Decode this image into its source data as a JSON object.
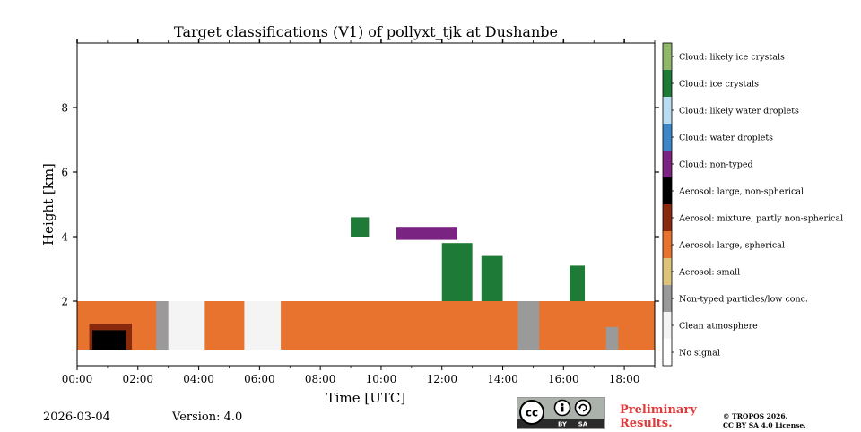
{
  "chart_data": {
    "type": "heatmap",
    "title": "Target classifications (V1) of pollyxt_tjk at Dushanbe",
    "xlabel": "Time [UTC]",
    "ylabel": "Height [km]",
    "xlim_hours": [
      0,
      19
    ],
    "ylim_km": [
      0,
      10
    ],
    "x_ticks": [
      "00:00",
      "02:00",
      "04:00",
      "06:00",
      "08:00",
      "10:00",
      "12:00",
      "14:00",
      "16:00",
      "18:00"
    ],
    "x_tick_hours": [
      0,
      2,
      4,
      6,
      8,
      10,
      12,
      14,
      16,
      18
    ],
    "y_ticks": [
      "2",
      "4",
      "6",
      "8"
    ],
    "y_tick_values": [
      2,
      4,
      6,
      8
    ],
    "legend": [
      {
        "label": "Cloud: likely ice crystals",
        "color": "#8fb869"
      },
      {
        "label": "Cloud: ice crystals",
        "color": "#1e7a37"
      },
      {
        "label": "Cloud: likely water droplets",
        "color": "#b8dcf2"
      },
      {
        "label": "Cloud: water droplets",
        "color": "#3b87c8"
      },
      {
        "label": "Cloud: non-typed",
        "color": "#7b2383"
      },
      {
        "label": "Aerosol: large, non-spherical",
        "color": "#000000"
      },
      {
        "label": "Aerosol: mixture, partly non-spherical",
        "color": "#8a2a0c"
      },
      {
        "label": "Aerosol: large, spherical",
        "color": "#e8732e"
      },
      {
        "label": "Aerosol: small",
        "color": "#dcc57a"
      },
      {
        "label": "Non-typed particles/low conc.",
        "color": "#9a9a9a"
      },
      {
        "label": "Clean atmosphere",
        "color": "#f4f4f4"
      },
      {
        "label": "No signal",
        "color": "#ffffff"
      }
    ],
    "layers": [
      {
        "class": "Aerosol: large, spherical",
        "from_hours": 0.0,
        "to_hours": 19.0,
        "base_km": 0.5,
        "top_km": 2.0
      },
      {
        "class": "Non-typed particles/low conc.",
        "from_hours": 2.6,
        "to_hours": 3.0,
        "base_km": 0.5,
        "top_km": 2.0
      },
      {
        "class": "Clean atmosphere",
        "from_hours": 3.0,
        "to_hours": 4.2,
        "base_km": 0.5,
        "top_km": 2.0
      },
      {
        "class": "Clean atmosphere",
        "from_hours": 5.5,
        "to_hours": 6.7,
        "base_km": 0.5,
        "top_km": 2.0
      },
      {
        "class": "Aerosol: mixture, partly non-spherical",
        "from_hours": 0.4,
        "to_hours": 1.8,
        "base_km": 0.5,
        "top_km": 1.3
      },
      {
        "class": "Aerosol: large, non-spherical",
        "from_hours": 0.5,
        "to_hours": 1.6,
        "base_km": 0.5,
        "top_km": 1.1
      },
      {
        "class": "Cloud: ice crystals",
        "from_hours": 9.0,
        "to_hours": 9.6,
        "base_km": 4.0,
        "top_km": 4.6
      },
      {
        "class": "Cloud: ice crystals",
        "from_hours": 12.0,
        "to_hours": 13.0,
        "base_km": 2.0,
        "top_km": 3.8
      },
      {
        "class": "Cloud: ice crystals",
        "from_hours": 13.3,
        "to_hours": 14.0,
        "base_km": 2.0,
        "top_km": 3.4
      },
      {
        "class": "Cloud: ice crystals",
        "from_hours": 16.2,
        "to_hours": 16.7,
        "base_km": 2.0,
        "top_km": 3.1
      },
      {
        "class": "Cloud: non-typed",
        "from_hours": 10.5,
        "to_hours": 12.5,
        "base_km": 3.9,
        "top_km": 4.3
      },
      {
        "class": "Non-typed particles/low conc.",
        "from_hours": 14.5,
        "to_hours": 15.2,
        "base_km": 0.5,
        "top_km": 2.0
      },
      {
        "class": "Non-typed particles/low conc.",
        "from_hours": 17.4,
        "to_hours": 17.8,
        "base_km": 0.5,
        "top_km": 1.2
      }
    ]
  },
  "footer": {
    "date": "2026-03-04",
    "version": "Version: 4.0",
    "preliminary_line1": "Preliminary",
    "preliminary_line2": "Results.",
    "copyright_line1": "© TROPOS 2026.",
    "copyright_line2": "CC BY SA 4.0 License.",
    "license_badge": "cc BY SA"
  }
}
